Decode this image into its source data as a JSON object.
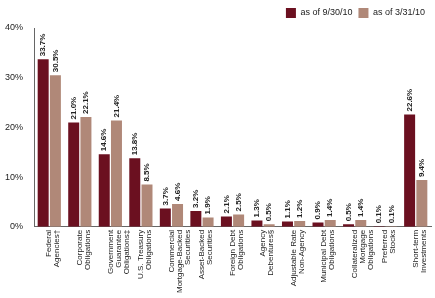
{
  "chart_data": {
    "type": "bar",
    "categories": [
      "Federal Agencies†",
      "Corporate Obligations",
      "Government Guarantee Obligations‡",
      "U.S. Treasury Obligations",
      "Commercial Mortgage-Backed Securities",
      "Asset-Backed Securities",
      "Foreign Debt Obligations",
      "Agency Debentures§",
      "Adjustable Rate Non-Agency",
      "Municipal Debt Obligations",
      "Collateralized Mortgage Obligations",
      "Preferred Stocks",
      "Short-term Investments"
    ],
    "series": [
      {
        "name": "as of 9/30/10",
        "color": "#6b1020",
        "values": [
          33.7,
          21.0,
          14.6,
          13.8,
          3.7,
          3.2,
          2.1,
          1.3,
          1.1,
          0.9,
          0.5,
          0.1,
          22.6
        ],
        "value_labels": [
          "33.7%",
          "21.0%",
          "14.6%",
          "13.8%",
          "3.7%",
          "3.2%",
          "2.1%",
          "1.3%",
          "1.1%",
          "0.9%",
          "0.5%",
          "0.1%",
          "22.6%"
        ]
      },
      {
        "name": "as of 3/31/10",
        "color": "#b08878",
        "values": [
          30.5,
          22.1,
          21.4,
          8.5,
          4.6,
          1.9,
          2.5,
          0.5,
          1.2,
          1.4,
          1.4,
          0.1,
          9.4
        ],
        "value_labels": [
          "30.5%",
          "22.1%",
          "21.4%",
          "8.5%",
          "4.6%",
          "1.9%",
          "2.5%",
          "0.5%",
          "1.2%",
          "1.4%",
          "1.4%",
          "0.1%",
          "9.4%"
        ]
      }
    ],
    "ylim": [
      0,
      40
    ],
    "yticks": [
      {
        "value": 0,
        "label": "0%"
      },
      {
        "value": 10,
        "label": "10%"
      },
      {
        "value": 20,
        "label": "20%"
      },
      {
        "value": 30,
        "label": "30%"
      },
      {
        "value": 40,
        "label": "40%"
      }
    ],
    "grid": false,
    "legend": "top-right",
    "data_labels": true
  }
}
